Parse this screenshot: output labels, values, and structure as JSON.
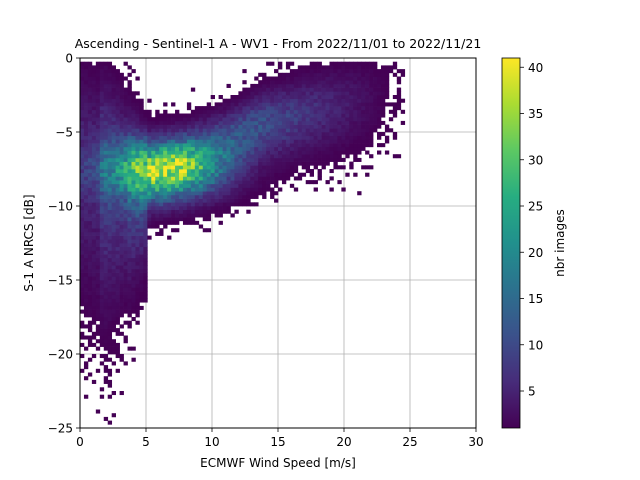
{
  "chart_data": {
    "type": "heatmap",
    "title": "Ascending - Sentinel-1 A - WV1 - From 2022/11/01 to 2022/11/21",
    "xlabel": "ECMWF Wind Speed [m/s]",
    "ylabel": "S-1 A NRCS [dB]",
    "xlim": [
      0,
      30
    ],
    "ylim": [
      -25,
      0
    ],
    "grid": true,
    "x_ticks": [
      "0",
      "5",
      "10",
      "15",
      "20",
      "25",
      "30"
    ],
    "y_ticks": [
      "0",
      "−5",
      "−10",
      "−15",
      "−20",
      "−25"
    ],
    "colorbar": {
      "label": "nbr images",
      "range": [
        1,
        41
      ],
      "colormap": "viridis",
      "ticks": [
        "5",
        "10",
        "15",
        "20",
        "25",
        "30",
        "35",
        "40"
      ]
    },
    "bins": {
      "x_step": 0.3,
      "y_step": 0.25,
      "peak_count": 41,
      "peak_location": {
        "x": 6.5,
        "y": -7.5
      }
    }
  }
}
